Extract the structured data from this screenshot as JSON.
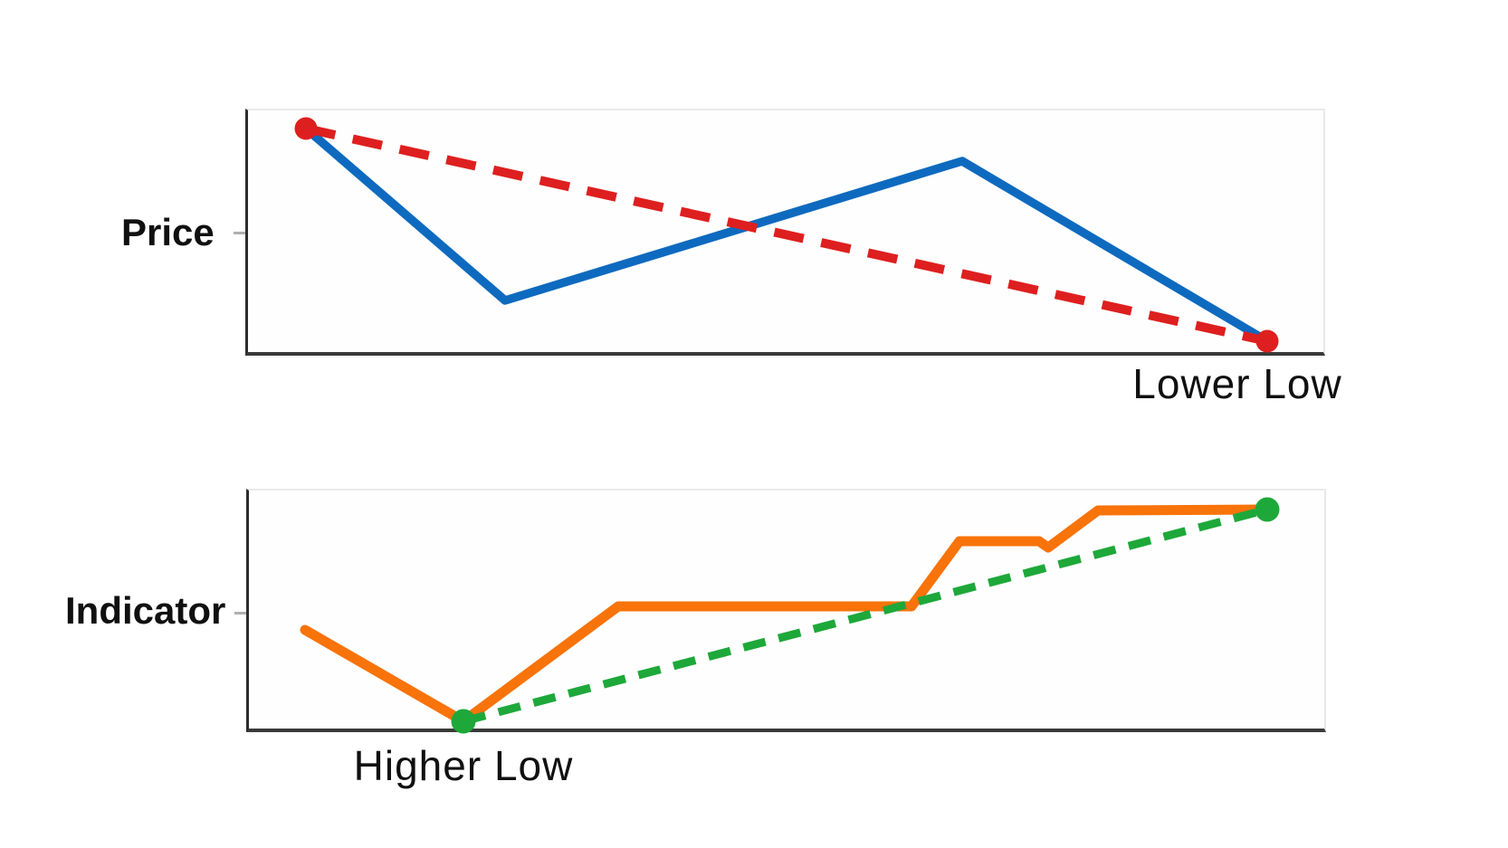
{
  "panels": {
    "price": {
      "label": "Price",
      "annotation": "Lower Low"
    },
    "indicator": {
      "label": "Indicator",
      "annotation": "Higher Low"
    }
  },
  "colors": {
    "price_line": "#0e6abf",
    "price_trendline": "#de1f1f",
    "indicator_line": "#f8730a",
    "indicator_trendline": "#1ea83a",
    "axis_dark": "#2d2d2d",
    "axis_light": "#eaeaea",
    "tick": "#b0b0b0",
    "text": "#101010",
    "background": "#ffffff"
  },
  "chart_data": [
    {
      "type": "line",
      "panel": "price",
      "ylabel": "Price",
      "grid": false,
      "legend": false,
      "units": "panel-pixels, y-down, plot area 1188x267",
      "description": "Price makes a lower low while a dashed trendline connects the two swing lows downward",
      "series": [
        {
          "name": "price-line",
          "color": "#0e6abf",
          "dash": null,
          "width": 9.5,
          "points": [
            [
              64,
              20
            ],
            [
              284,
              210
            ],
            [
              789,
              56
            ],
            [
              1126,
              255
            ]
          ]
        },
        {
          "name": "lower-low-trendline",
          "color": "#de1f1f",
          "dash": [
            33,
            20
          ],
          "width": 10,
          "points": [
            [
              64,
              20
            ],
            [
              1126,
              255
            ]
          ]
        }
      ],
      "markers": [
        {
          "x": 64,
          "y": 20,
          "r": 12.5,
          "color": "#de1f1f"
        },
        {
          "x": 1126,
          "y": 255,
          "r": 12.5,
          "color": "#de1f1f"
        }
      ],
      "annotation": "Lower Low"
    },
    {
      "type": "line",
      "panel": "indicator",
      "ylabel": "Indicator",
      "grid": false,
      "legend": false,
      "units": "panel-pixels, y-down, plot area 1188x263",
      "description": "Indicator makes a higher low while a dashed trendline connects the two lows upward (bullish divergence)",
      "series": [
        {
          "name": "indicator-line",
          "color": "#f8730a",
          "dash": null,
          "width": 11,
          "points": [
            [
              62,
              154
            ],
            [
              237,
              255
            ],
            [
              408,
              128
            ],
            [
              732,
              128
            ],
            [
              785,
              56
            ],
            [
              873,
              56
            ],
            [
              883,
              63
            ],
            [
              938,
              22
            ],
            [
              1125,
              21
            ]
          ]
        },
        {
          "name": "higher-low-trendline",
          "color": "#1ea83a",
          "dash": [
            25,
            15
          ],
          "width": 9,
          "points": [
            [
              237,
              255
            ],
            [
              1125,
              21
            ]
          ]
        }
      ],
      "markers": [
        {
          "x": 237,
          "y": 255,
          "r": 13.5,
          "color": "#1ea83a"
        },
        {
          "x": 1125,
          "y": 21,
          "r": 13.5,
          "color": "#1ea83a"
        }
      ],
      "annotation": "Higher Low"
    }
  ]
}
